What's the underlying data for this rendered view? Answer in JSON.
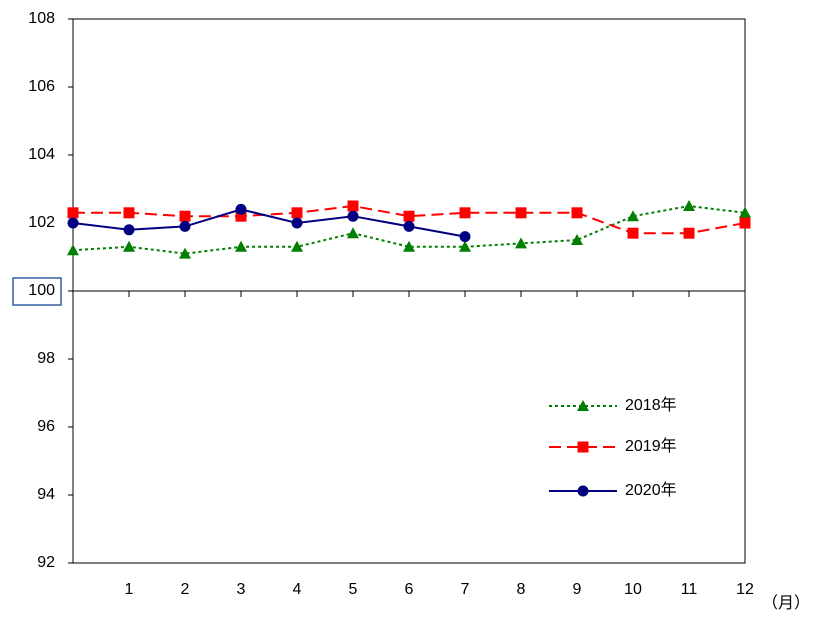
{
  "chart_data": {
    "type": "line",
    "x": [
      0,
      1,
      2,
      3,
      4,
      5,
      6,
      7,
      8,
      9,
      10,
      11,
      12
    ],
    "xlim": [
      0,
      12
    ],
    "xticks": [
      1,
      2,
      3,
      4,
      5,
      6,
      7,
      8,
      9,
      10,
      11,
      12
    ],
    "x_unit": "（月）",
    "ylim": [
      92,
      108
    ],
    "yticks": [
      92,
      94,
      96,
      98,
      100,
      102,
      104,
      106,
      108
    ],
    "grid": false,
    "legend": "lower right",
    "series": [
      {
        "name": "2018年",
        "color": "#008000",
        "line_style": "dotted",
        "marker": "triangle",
        "values": [
          101.2,
          101.3,
          101.1,
          101.3,
          101.3,
          101.7,
          101.3,
          101.3,
          101.4,
          101.5,
          102.2,
          102.5,
          102.3
        ]
      },
      {
        "name": "2019年",
        "color": "#ff0000",
        "line_style": "dashed",
        "marker": "square",
        "values": [
          102.3,
          102.3,
          102.2,
          102.2,
          102.3,
          102.5,
          102.2,
          102.3,
          102.3,
          102.3,
          101.7,
          101.7,
          102.0
        ]
      },
      {
        "name": "2020年",
        "color": "#000080",
        "line_style": "solid",
        "marker": "circle",
        "values": [
          102.0,
          101.8,
          101.9,
          102.4,
          102.0,
          102.2,
          101.9,
          101.6,
          null,
          null,
          null,
          null,
          null
        ]
      }
    ]
  }
}
